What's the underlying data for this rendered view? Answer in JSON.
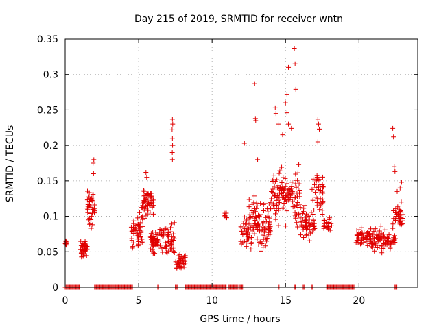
{
  "chart_data": {
    "type": "scatter",
    "title": "Day 215 of 2019, SRMTID for receiver wntn",
    "xlabel": "GPS time / hours",
    "ylabel": "SRMTID / TECUs",
    "xlim": [
      0,
      24
    ],
    "ylim": [
      0,
      0.35
    ],
    "x_ticks": [
      0,
      5,
      10,
      15,
      20
    ],
    "y_ticks": [
      0,
      0.05,
      0.1,
      0.15,
      0.2,
      0.25,
      0.3,
      0.35
    ],
    "x_tick_labels": [
      "0",
      "5",
      "10",
      "15",
      "20"
    ],
    "y_tick_labels": [
      "0",
      "0.05",
      "0.1",
      "0.15",
      "0.2",
      "0.25",
      "0.3",
      "0.35"
    ],
    "grid": true,
    "marker": "+",
    "series": [
      {
        "name": "wntn",
        "color": "#e00000",
        "clusters": [
          {
            "x_range": [
              0.0,
              0.1
            ],
            "y_center": 0.062,
            "y_spread": 0.012,
            "n": 10
          },
          {
            "x_range": [
              1.0,
              1.5
            ],
            "y_center": 0.055,
            "y_spread": 0.02,
            "n": 40
          },
          {
            "x_range": [
              1.5,
              2.0
            ],
            "y_center": 0.11,
            "y_spread": 0.04,
            "n": 40
          },
          {
            "x_range": [
              4.5,
              5.3
            ],
            "y_center": 0.08,
            "y_spread": 0.03,
            "n": 60
          },
          {
            "x_range": [
              5.2,
              6.0
            ],
            "y_center": 0.12,
            "y_spread": 0.03,
            "n": 60
          },
          {
            "x_range": [
              5.8,
              7.0
            ],
            "y_center": 0.065,
            "y_spread": 0.025,
            "n": 80
          },
          {
            "x_range": [
              7.0,
              7.5
            ],
            "y_center": 0.07,
            "y_spread": 0.03,
            "n": 30
          },
          {
            "x_range": [
              7.5,
              8.2
            ],
            "y_center": 0.035,
            "y_spread": 0.015,
            "n": 40
          },
          {
            "x_range": [
              10.8,
              11.0
            ],
            "y_center": 0.1,
            "y_spread": 0.012,
            "n": 6
          },
          {
            "x_range": [
              11.9,
              12.5
            ],
            "y_center": 0.075,
            "y_spread": 0.03,
            "n": 30
          },
          {
            "x_range": [
              12.5,
              14.0
            ],
            "y_center": 0.09,
            "y_spread": 0.05,
            "n": 110
          },
          {
            "x_range": [
              14.0,
              16.0
            ],
            "y_center": 0.13,
            "y_spread": 0.05,
            "n": 130
          },
          {
            "x_range": [
              16.0,
              17.0
            ],
            "y_center": 0.09,
            "y_spread": 0.03,
            "n": 60
          },
          {
            "x_range": [
              16.8,
              17.6
            ],
            "y_center": 0.13,
            "y_spread": 0.04,
            "n": 40
          },
          {
            "x_range": [
              17.6,
              18.2
            ],
            "y_center": 0.09,
            "y_spread": 0.015,
            "n": 20
          },
          {
            "x_range": [
              19.8,
              21.5
            ],
            "y_center": 0.07,
            "y_spread": 0.02,
            "n": 90
          },
          {
            "x_range": [
              21.5,
              22.5
            ],
            "y_center": 0.065,
            "y_spread": 0.02,
            "n": 50
          },
          {
            "x_range": [
              22.3,
              23.0
            ],
            "y_center": 0.1,
            "y_spread": 0.025,
            "n": 40
          }
        ],
        "extra_points": [
          [
            1.9,
            0.175
          ],
          [
            1.95,
            0.18
          ],
          [
            1.93,
            0.16
          ],
          [
            5.5,
            0.162
          ],
          [
            5.55,
            0.155
          ],
          [
            7.3,
            0.237
          ],
          [
            7.32,
            0.23
          ],
          [
            7.28,
            0.222
          ],
          [
            7.3,
            0.21
          ],
          [
            7.31,
            0.2
          ],
          [
            7.29,
            0.19
          ],
          [
            7.3,
            0.18
          ],
          [
            12.2,
            0.203
          ],
          [
            12.9,
            0.287
          ],
          [
            12.95,
            0.238
          ],
          [
            12.97,
            0.235
          ],
          [
            13.1,
            0.18
          ],
          [
            14.3,
            0.253
          ],
          [
            14.35,
            0.245
          ],
          [
            14.5,
            0.23
          ],
          [
            14.8,
            0.215
          ],
          [
            15.0,
            0.26
          ],
          [
            15.1,
            0.246
          ],
          [
            15.2,
            0.23
          ],
          [
            15.4,
            0.224
          ],
          [
            15.1,
            0.272
          ],
          [
            15.2,
            0.31
          ],
          [
            15.6,
            0.337
          ],
          [
            15.65,
            0.315
          ],
          [
            15.7,
            0.279
          ],
          [
            17.2,
            0.237
          ],
          [
            17.25,
            0.23
          ],
          [
            17.3,
            0.223
          ],
          [
            17.2,
            0.205
          ],
          [
            17.15,
            0.155
          ],
          [
            17.1,
            0.15
          ],
          [
            22.3,
            0.224
          ],
          [
            22.35,
            0.212
          ],
          [
            22.4,
            0.17
          ],
          [
            22.45,
            0.163
          ],
          [
            22.6,
            0.135
          ],
          [
            22.8,
            0.14
          ],
          [
            22.9,
            0.148
          ]
        ],
        "zero_segments": [
          [
            0.0,
            1.0
          ],
          [
            2.0,
            4.6
          ],
          [
            6.3,
            6.4
          ],
          [
            7.5,
            7.7
          ],
          [
            8.2,
            11.0
          ],
          [
            11.1,
            11.8
          ],
          [
            11.9,
            12.1
          ],
          [
            14.5,
            14.6
          ],
          [
            15.6,
            15.7
          ],
          [
            16.2,
            16.3
          ],
          [
            16.8,
            16.9
          ],
          [
            17.8,
            19.7
          ],
          [
            22.4,
            22.6
          ]
        ]
      }
    ]
  }
}
